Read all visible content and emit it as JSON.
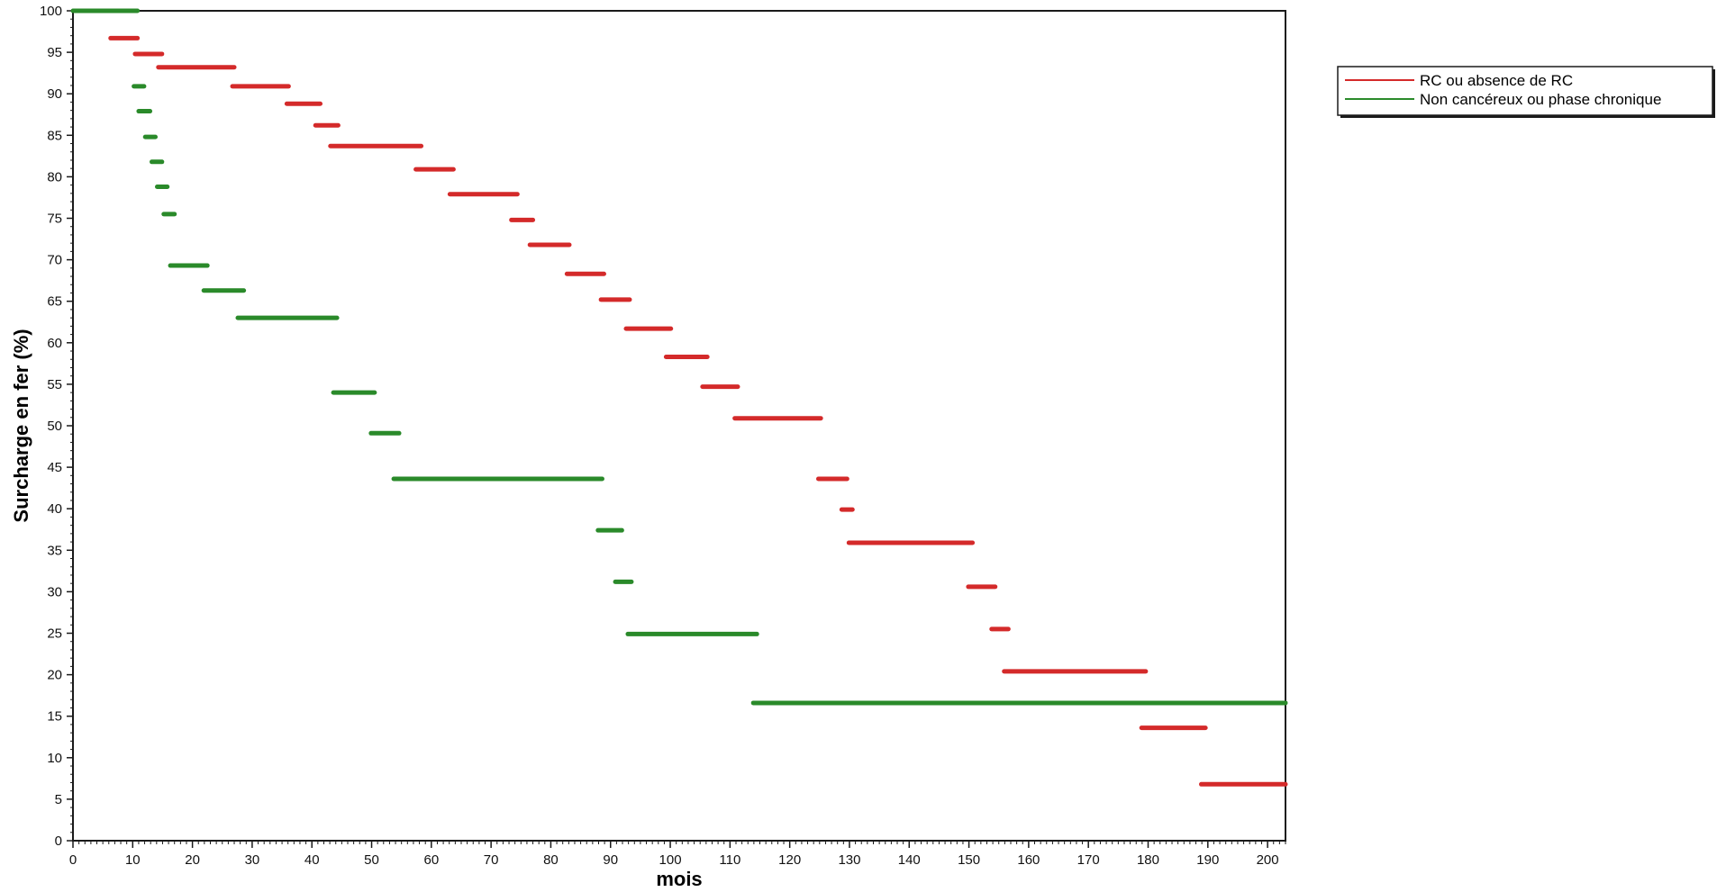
{
  "chart_data": {
    "type": "line",
    "style": "step-segments",
    "xlabel": "mois",
    "ylabel": "Surcharge en fer (%)",
    "xlim": [
      0,
      203
    ],
    "ylim": [
      0,
      100
    ],
    "x_ticks": [
      0,
      10,
      20,
      30,
      40,
      50,
      60,
      70,
      80,
      90,
      100,
      110,
      120,
      130,
      140,
      150,
      160,
      170,
      180,
      190,
      200
    ],
    "y_ticks": [
      0,
      5,
      10,
      15,
      20,
      25,
      30,
      35,
      40,
      45,
      50,
      55,
      60,
      65,
      70,
      75,
      80,
      85,
      90,
      95,
      100
    ],
    "grid": false,
    "legend_position": "top-right, outside plot",
    "series": [
      {
        "name": "RC ou absence de RC",
        "color": "#d42a2a",
        "segments": [
          {
            "x0": 6.3,
            "x1": 10.8,
            "y": 96.7
          },
          {
            "x0": 10.4,
            "x1": 14.9,
            "y": 94.8
          },
          {
            "x0": 14.3,
            "x1": 27.0,
            "y": 93.2
          },
          {
            "x0": 26.7,
            "x1": 36.1,
            "y": 90.9
          },
          {
            "x0": 35.8,
            "x1": 41.4,
            "y": 88.8
          },
          {
            "x0": 40.6,
            "x1": 44.4,
            "y": 86.2
          },
          {
            "x0": 43.1,
            "x1": 58.3,
            "y": 83.7
          },
          {
            "x0": 57.4,
            "x1": 63.7,
            "y": 80.9
          },
          {
            "x0": 63.1,
            "x1": 74.4,
            "y": 77.9
          },
          {
            "x0": 73.4,
            "x1": 77.0,
            "y": 74.8
          },
          {
            "x0": 76.5,
            "x1": 83.1,
            "y": 71.8
          },
          {
            "x0": 82.7,
            "x1": 88.9,
            "y": 68.3
          },
          {
            "x0": 88.4,
            "x1": 93.2,
            "y": 65.2
          },
          {
            "x0": 92.6,
            "x1": 100.1,
            "y": 61.7
          },
          {
            "x0": 99.3,
            "x1": 106.2,
            "y": 58.3
          },
          {
            "x0": 105.4,
            "x1": 111.3,
            "y": 54.7
          },
          {
            "x0": 110.8,
            "x1": 125.2,
            "y": 50.9
          },
          {
            "x0": 124.8,
            "x1": 129.6,
            "y": 43.6
          },
          {
            "x0": 128.7,
            "x1": 130.5,
            "y": 39.9
          },
          {
            "x0": 129.9,
            "x1": 150.6,
            "y": 35.9
          },
          {
            "x0": 149.9,
            "x1": 154.4,
            "y": 30.6
          },
          {
            "x0": 153.8,
            "x1": 156.6,
            "y": 25.5
          },
          {
            "x0": 155.9,
            "x1": 179.6,
            "y": 20.4
          },
          {
            "x0": 178.9,
            "x1": 189.6,
            "y": 13.6
          },
          {
            "x0": 188.9,
            "x1": 203.0,
            "y": 6.8
          }
        ]
      },
      {
        "name": "Non cancéreux ou phase chronique",
        "color": "#2a8a2a",
        "segments": [
          {
            "x0": 0.0,
            "x1": 10.8,
            "y": 100.0
          },
          {
            "x0": 10.2,
            "x1": 11.9,
            "y": 90.9
          },
          {
            "x0": 11.0,
            "x1": 12.9,
            "y": 87.9
          },
          {
            "x0": 12.1,
            "x1": 13.8,
            "y": 84.8
          },
          {
            "x0": 13.2,
            "x1": 14.9,
            "y": 81.8
          },
          {
            "x0": 14.1,
            "x1": 15.8,
            "y": 78.8
          },
          {
            "x0": 15.2,
            "x1": 17.0,
            "y": 75.5
          },
          {
            "x0": 16.3,
            "x1": 22.5,
            "y": 69.3
          },
          {
            "x0": 21.9,
            "x1": 28.6,
            "y": 66.3
          },
          {
            "x0": 27.6,
            "x1": 44.2,
            "y": 63.0
          },
          {
            "x0": 43.6,
            "x1": 50.5,
            "y": 54.0
          },
          {
            "x0": 49.9,
            "x1": 54.6,
            "y": 49.1
          },
          {
            "x0": 53.7,
            "x1": 88.6,
            "y": 43.6
          },
          {
            "x0": 87.9,
            "x1": 91.9,
            "y": 37.4
          },
          {
            "x0": 90.8,
            "x1": 93.5,
            "y": 31.2
          },
          {
            "x0": 92.9,
            "x1": 114.5,
            "y": 24.9
          },
          {
            "x0": 113.9,
            "x1": 203.0,
            "y": 16.6
          }
        ]
      }
    ]
  }
}
